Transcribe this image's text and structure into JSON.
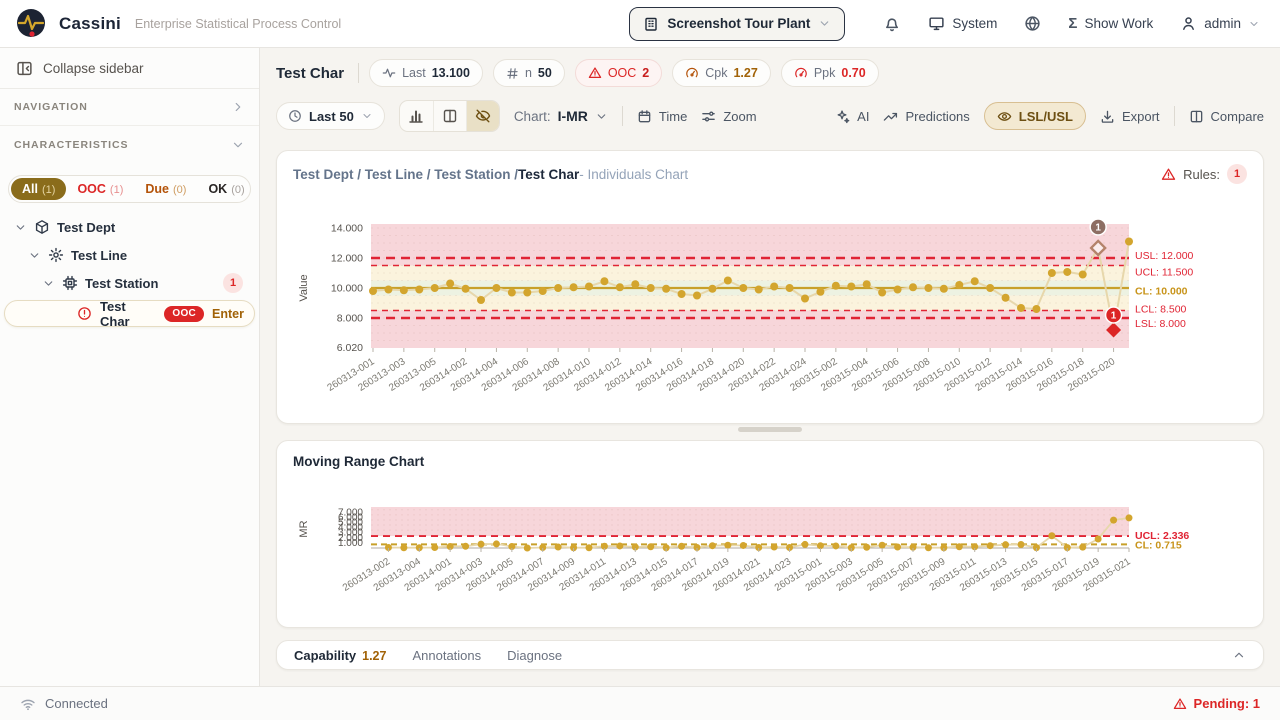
{
  "header": {
    "brand": "Cassini",
    "subtitle": "Enterprise Statistical Process Control",
    "plant_selector": "Screenshot Tour Plant",
    "system_label": "System",
    "show_work_label": "Show Work",
    "user": "admin",
    "sigma_glyph": "Σ"
  },
  "sidebar": {
    "collapse_label": "Collapse sidebar",
    "navigation_label": "NAVIGATION",
    "characteristics_label": "CHARACTERISTICS",
    "filters": [
      {
        "label": "All",
        "count": "(1)"
      },
      {
        "label": "OOC",
        "count": "(1)"
      },
      {
        "label": "Due",
        "count": "(0)"
      },
      {
        "label": "OK",
        "count": "(0)"
      }
    ],
    "tree": [
      {
        "label": "Test Dept"
      },
      {
        "label": "Test Line"
      },
      {
        "label": "Test Station",
        "badge": "1"
      },
      {
        "label": "Test Char",
        "badge": "OOC",
        "action": "Enter"
      }
    ]
  },
  "statsbar": {
    "title": "Test Char",
    "pills": [
      {
        "label": "Last",
        "value": "13.100"
      },
      {
        "label": "n",
        "value": "50"
      },
      {
        "label": "OOC",
        "value": "2"
      },
      {
        "label": "Cpk",
        "value": "1.27"
      },
      {
        "label": "Ppk",
        "value": "0.70"
      }
    ]
  },
  "toolbar": {
    "range_label": "Last 50",
    "chart_label": "Chart:",
    "chart_type": "I-MR",
    "time_label": "Time",
    "zoom_label": "Zoom",
    "ai_label": "AI",
    "predictions_label": "Predictions",
    "lsl_usl_label": "LSL/USL",
    "export_label": "Export",
    "compare_label": "Compare"
  },
  "panel1": {
    "breadcrumb_prefix": "Test Dept / Test Line / Test Station / ",
    "char_name": "Test Char",
    "suffix": " - Individuals Chart",
    "rules_label": "Rules:",
    "rules_count": "1"
  },
  "panel2": {
    "title": "Moving Range Chart"
  },
  "tabs": {
    "capability": "Capability",
    "capability_value": "1.27",
    "annotations": "Annotations",
    "diagnose": "Diagnose"
  },
  "statusbar": {
    "connected": "Connected",
    "pending": "Pending: 1"
  },
  "colors": {
    "point_gold": "#d3a52e",
    "line_gold": "#e7d7ab",
    "center_gold": "#c8a02a",
    "chart_red": "#e02434",
    "label_red": "#dc2626",
    "label_gold": "#c8941a",
    "pink_zone": "#f7d6da",
    "cream_zone": "#fbf3dd",
    "green_zone": "#edf2e2",
    "pending_brown": "#8d6e63",
    "ooc_red": "#dc2626",
    "tick_text": "#7c7a72",
    "axis_text": "#57534e"
  },
  "chart_data": [
    {
      "type": "line",
      "name": "individuals-chart",
      "title": "Test Dept / Test Line / Test Station / Test Char - Individuals Chart",
      "ylabel": "Value",
      "yticks": [
        "14.000",
        "12.000",
        "10.000",
        "8.000",
        "6.020"
      ],
      "ytick_values": [
        14,
        12,
        10,
        8,
        6.02
      ],
      "ylim": [
        6.02,
        14.27
      ],
      "limits": {
        "usl": 12.0,
        "ucl": 11.5,
        "cl": 10.0,
        "lcl": 8.5,
        "lsl": 8.0
      },
      "limit_labels": [
        {
          "text": "USL: 12.000",
          "value": 12.0,
          "color": "red",
          "style": "spec",
          "dy": -2
        },
        {
          "text": "UCL: 11.500",
          "value": 11.5,
          "color": "red",
          "style": "control",
          "dy": 7
        },
        {
          "text": "CL: 10.000",
          "value": 10.0,
          "color": "gold",
          "style": "center",
          "dy": 3.5
        },
        {
          "text": "LCL: 8.500",
          "value": 8.5,
          "color": "red",
          "style": "control",
          "dy": -1
        },
        {
          "text": "LSL: 8.000",
          "value": 8.0,
          "color": "red",
          "style": "spec",
          "dy": 6
        }
      ],
      "x_labels": [
        "260313-001",
        "260313-003",
        "260313-005",
        "260314-002",
        "260314-004",
        "260314-006",
        "260314-008",
        "260314-010",
        "260314-012",
        "260314-014",
        "260314-016",
        "260314-018",
        "260314-020",
        "260314-022",
        "260314-024",
        "260315-002",
        "260315-004",
        "260315-006",
        "260315-008",
        "260315-010",
        "260315-012",
        "260315-014",
        "260315-016",
        "260315-018",
        "260315-020"
      ],
      "values": [
        9.8,
        9.9,
        9.85,
        9.9,
        10.0,
        10.3,
        9.95,
        9.2,
        10.0,
        9.7,
        9.7,
        9.8,
        10.0,
        10.05,
        10.1,
        10.45,
        10.05,
        10.25,
        10.0,
        9.95,
        9.6,
        9.5,
        9.95,
        10.5,
        10.0,
        9.9,
        10.1,
        10.0,
        9.3,
        9.75,
        10.15,
        10.1,
        10.25,
        9.7,
        9.9,
        10.05,
        10.0,
        9.95,
        10.2,
        10.45,
        10.0,
        9.35,
        8.67,
        8.6,
        11.0,
        11.07,
        10.9,
        12.67,
        7.2,
        13.1
      ],
      "markers": {
        "pending_index": 47,
        "pending_badge": "1",
        "ooc_index": 48,
        "ooc_badge": "1"
      }
    },
    {
      "type": "line",
      "name": "moving-range-chart",
      "title": "Moving Range Chart",
      "ylabel": "MR",
      "yticks": [
        "7.000",
        "6.000",
        "5.000",
        "4.000",
        "3.000",
        "2.000",
        "1.000"
      ],
      "ytick_values": [
        7,
        6,
        5,
        4,
        3,
        2,
        1
      ],
      "ylim": [
        0,
        8
      ],
      "limits": {
        "ucl": 2.336,
        "cl": 0.715
      },
      "limit_labels": [
        {
          "text": "UCL: 2.336",
          "value": 2.336,
          "color": "red",
          "style": "control",
          "dy": 3
        },
        {
          "text": "CL: 0.715",
          "value": 0.715,
          "color": "gold",
          "style": "center",
          "dy": 4
        }
      ],
      "x_labels": [
        "260313-002",
        "260313-004",
        "260314-001",
        "260314-003",
        "260314-005",
        "260314-007",
        "260314-009",
        "260314-011",
        "260314-013",
        "260314-015",
        "260314-017",
        "260314-019",
        "260314-021",
        "260314-023",
        "260315-001",
        "260315-003",
        "260315-005",
        "260315-007",
        "260315-009",
        "260315-011",
        "260315-013",
        "260315-015",
        "260315-017",
        "260315-019",
        "260315-021"
      ],
      "values": [
        0.1,
        0.05,
        0.05,
        0.1,
        0.3,
        0.35,
        0.75,
        0.8,
        0.3,
        0.0,
        0.1,
        0.2,
        0.05,
        0.05,
        0.35,
        0.4,
        0.2,
        0.25,
        0.05,
        0.35,
        0.1,
        0.45,
        0.55,
        0.5,
        0.1,
        0.2,
        0.1,
        0.7,
        0.45,
        0.4,
        0.05,
        0.15,
        0.55,
        0.2,
        0.15,
        0.05,
        0.05,
        0.25,
        0.25,
        0.45,
        0.65,
        0.68,
        0.07,
        2.4,
        0.07,
        0.17,
        1.77,
        5.47,
        5.9
      ]
    }
  ]
}
